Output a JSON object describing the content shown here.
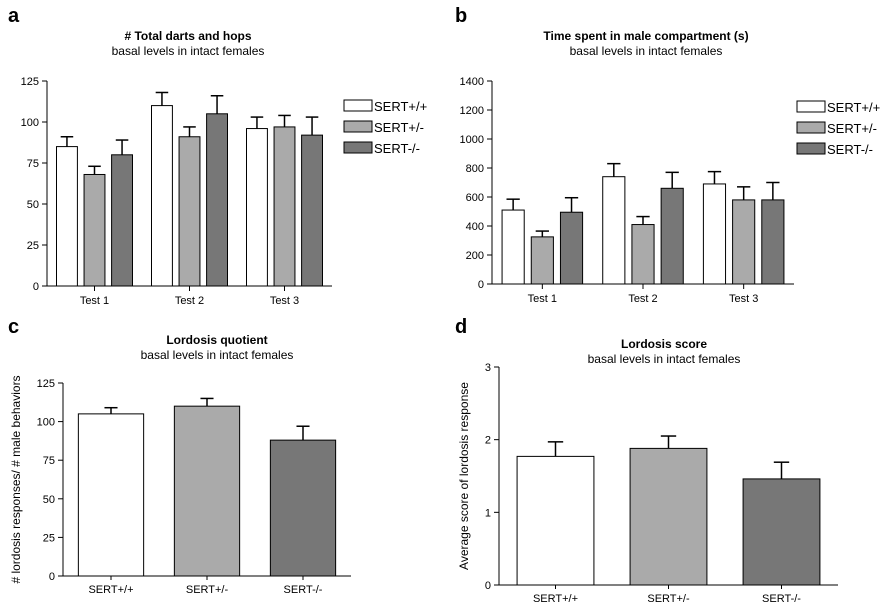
{
  "colors": {
    "sert_wt": "#ffffff",
    "sert_het": "#aaaaaa",
    "sert_ko": "#777777",
    "stroke": "#000000"
  },
  "chart_data": [
    {
      "panel": "a",
      "type": "bar",
      "title": "# Total darts and hops",
      "subtitle": "basal levels in intact females",
      "xlabel": "",
      "ylabel": "",
      "categories": [
        "Test 1",
        "Test 2",
        "Test 3"
      ],
      "series": [
        {
          "name": "SERT+/+",
          "values": [
            85,
            110,
            96
          ],
          "errors": [
            6,
            8,
            7
          ]
        },
        {
          "name": "SERT+/-",
          "values": [
            68,
            91,
            97
          ],
          "errors": [
            5,
            6,
            7
          ]
        },
        {
          "name": "SERT-/-",
          "values": [
            80,
            105,
            92
          ],
          "errors": [
            9,
            11,
            11
          ]
        }
      ],
      "ylim": [
        0,
        125
      ],
      "yticks": [
        0,
        25,
        50,
        75,
        100,
        125
      ],
      "legend": "top-right"
    },
    {
      "panel": "b",
      "type": "bar",
      "title": "Time spent in male compartment (s)",
      "subtitle": "basal levels in intact females",
      "xlabel": "",
      "ylabel": "",
      "categories": [
        "Test 1",
        "Test 2",
        "Test 3"
      ],
      "series": [
        {
          "name": "SERT+/+",
          "values": [
            510,
            740,
            690
          ],
          "errors": [
            75,
            90,
            85
          ]
        },
        {
          "name": "SERT+/-",
          "values": [
            325,
            410,
            580
          ],
          "errors": [
            40,
            55,
            90
          ]
        },
        {
          "name": "SERT-/-",
          "values": [
            495,
            660,
            580
          ],
          "errors": [
            100,
            110,
            120
          ]
        }
      ],
      "ylim": [
        0,
        1400
      ],
      "yticks": [
        0,
        200,
        400,
        600,
        800,
        1000,
        1200,
        1400
      ],
      "legend": "top-right"
    },
    {
      "panel": "c",
      "type": "bar",
      "title": "Lordosis quotient",
      "subtitle": "basal levels in intact females",
      "xlabel": "",
      "ylabel": "# lordosis responses/ # male behaviors",
      "categories": [
        "SERT+/+",
        "SERT+/-",
        "SERT-/-"
      ],
      "values": [
        105,
        110,
        88
      ],
      "errors": [
        4,
        5,
        9
      ],
      "ylim": [
        0,
        125
      ],
      "yticks": [
        0,
        25,
        50,
        75,
        100,
        125
      ]
    },
    {
      "panel": "d",
      "type": "bar",
      "title": "Lordosis score",
      "subtitle": "basal levels in intact females",
      "xlabel": "",
      "ylabel": "Average score of lordosis response",
      "categories": [
        "SERT+/+",
        "SERT+/-",
        "SERT-/-"
      ],
      "values": [
        1.77,
        1.88,
        1.46
      ],
      "errors": [
        0.2,
        0.17,
        0.23
      ],
      "ylim": [
        0,
        3
      ],
      "yticks": [
        0,
        1,
        2,
        3
      ]
    }
  ]
}
